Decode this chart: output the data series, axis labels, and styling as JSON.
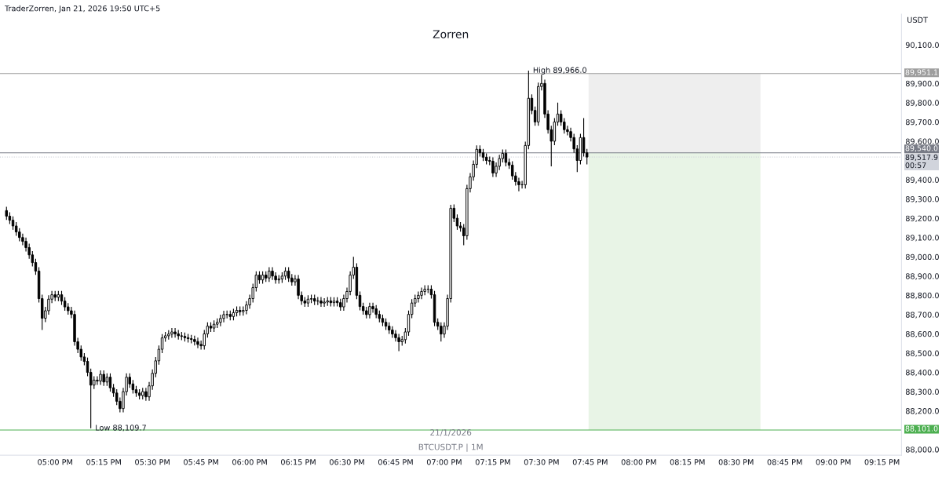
{
  "chart_data": {
    "type": "candlestick",
    "title": "Zorren",
    "ylabel": "USDT",
    "color": "#000000",
    "annotations": [
      "TraderZorren, Jan 21, 2026 19:50 UTC+5",
      "21/1/2026",
      "BTCUSDT.P | 1M",
      {
        "text": "High 89,966.0",
        "x": "2026-01-21T19:26",
        "y": 89966.0
      },
      {
        "text": "Low 88,109.7",
        "x": "2026-01-21T17:11",
        "y": 88109.7
      }
    ],
    "x": [
      "2026-01-21T16:45",
      "2026-01-21T16:46",
      "2026-01-21T16:47",
      "2026-01-21T16:48",
      "2026-01-21T16:49",
      "2026-01-21T16:50",
      "2026-01-21T16:51",
      "2026-01-21T16:52",
      "2026-01-21T16:53",
      "2026-01-21T16:54",
      "2026-01-21T16:55",
      "2026-01-21T16:56",
      "2026-01-21T16:57",
      "2026-01-21T16:58",
      "2026-01-21T16:59",
      "2026-01-21T17:00",
      "2026-01-21T17:01",
      "2026-01-21T17:02",
      "2026-01-21T17:03",
      "2026-01-21T17:04",
      "2026-01-21T17:05",
      "2026-01-21T17:06",
      "2026-01-21T17:07",
      "2026-01-21T17:08",
      "2026-01-21T17:09",
      "2026-01-21T17:10",
      "2026-01-21T17:11",
      "2026-01-21T17:12",
      "2026-01-21T17:13",
      "2026-01-21T17:14",
      "2026-01-21T17:15",
      "2026-01-21T17:16",
      "2026-01-21T17:17",
      "2026-01-21T17:18",
      "2026-01-21T17:19",
      "2026-01-21T17:20",
      "2026-01-21T17:21",
      "2026-01-21T17:22",
      "2026-01-21T17:23",
      "2026-01-21T17:24",
      "2026-01-21T17:25",
      "2026-01-21T17:26",
      "2026-01-21T17:27",
      "2026-01-21T17:28",
      "2026-01-21T17:29",
      "2026-01-21T17:30",
      "2026-01-21T17:31",
      "2026-01-21T17:32",
      "2026-01-21T17:33",
      "2026-01-21T17:34",
      "2026-01-21T17:35",
      "2026-01-21T17:36",
      "2026-01-21T17:37",
      "2026-01-21T17:38",
      "2026-01-21T17:39",
      "2026-01-21T17:40",
      "2026-01-21T17:41",
      "2026-01-21T17:42",
      "2026-01-21T17:43",
      "2026-01-21T17:44",
      "2026-01-21T17:45",
      "2026-01-21T17:46",
      "2026-01-21T17:47",
      "2026-01-21T17:48",
      "2026-01-21T17:49",
      "2026-01-21T17:50",
      "2026-01-21T17:51",
      "2026-01-21T17:52",
      "2026-01-21T17:53",
      "2026-01-21T17:54",
      "2026-01-21T17:55",
      "2026-01-21T17:56",
      "2026-01-21T17:57",
      "2026-01-21T17:58",
      "2026-01-21T17:59",
      "2026-01-21T18:00",
      "2026-01-21T18:01",
      "2026-01-21T18:02",
      "2026-01-21T18:03",
      "2026-01-21T18:04",
      "2026-01-21T18:05",
      "2026-01-21T18:06",
      "2026-01-21T18:07",
      "2026-01-21T18:08",
      "2026-01-21T18:09",
      "2026-01-21T18:10",
      "2026-01-21T18:11",
      "2026-01-21T18:12",
      "2026-01-21T18:13",
      "2026-01-21T18:14",
      "2026-01-21T18:15",
      "2026-01-21T18:16",
      "2026-01-21T18:17",
      "2026-01-21T18:18",
      "2026-01-21T18:19",
      "2026-01-21T18:20",
      "2026-01-21T18:21",
      "2026-01-21T18:22",
      "2026-01-21T18:23",
      "2026-01-21T18:24",
      "2026-01-21T18:25",
      "2026-01-21T18:26",
      "2026-01-21T18:27",
      "2026-01-21T18:28",
      "2026-01-21T18:29",
      "2026-01-21T18:30",
      "2026-01-21T18:31",
      "2026-01-21T18:32",
      "2026-01-21T18:33",
      "2026-01-21T18:34",
      "2026-01-21T18:35",
      "2026-01-21T18:36",
      "2026-01-21T18:37",
      "2026-01-21T18:38",
      "2026-01-21T18:39",
      "2026-01-21T18:40",
      "2026-01-21T18:41",
      "2026-01-21T18:42",
      "2026-01-21T18:43",
      "2026-01-21T18:44",
      "2026-01-21T18:45",
      "2026-01-21T18:46",
      "2026-01-21T18:47",
      "2026-01-21T18:48",
      "2026-01-21T18:49",
      "2026-01-21T18:50",
      "2026-01-21T18:51",
      "2026-01-21T18:52",
      "2026-01-21T18:53",
      "2026-01-21T18:54",
      "2026-01-21T18:55",
      "2026-01-21T18:56",
      "2026-01-21T18:57",
      "2026-01-21T18:58",
      "2026-01-21T18:59",
      "2026-01-21T19:00",
      "2026-01-21T19:01",
      "2026-01-21T19:02",
      "2026-01-21T19:03",
      "2026-01-21T19:04",
      "2026-01-21T19:05",
      "2026-01-21T19:06",
      "2026-01-21T19:07",
      "2026-01-21T19:08",
      "2026-01-21T19:09",
      "2026-01-21T19:10",
      "2026-01-21T19:11",
      "2026-01-21T19:12",
      "2026-01-21T19:13",
      "2026-01-21T19:14",
      "2026-01-21T19:15",
      "2026-01-21T19:16",
      "2026-01-21T19:17",
      "2026-01-21T19:18",
      "2026-01-21T19:19",
      "2026-01-21T19:20",
      "2026-01-21T19:21",
      "2026-01-21T19:22",
      "2026-01-21T19:23",
      "2026-01-21T19:24",
      "2026-01-21T19:25",
      "2026-01-21T19:26",
      "2026-01-21T19:27",
      "2026-01-21T19:28",
      "2026-01-21T19:29",
      "2026-01-21T19:30",
      "2026-01-21T19:31",
      "2026-01-21T19:32",
      "2026-01-21T19:33",
      "2026-01-21T19:34",
      "2026-01-21T19:35",
      "2026-01-21T19:36",
      "2026-01-21T19:37",
      "2026-01-21T19:38",
      "2026-01-21T19:39",
      "2026-01-21T19:40",
      "2026-01-21T19:41",
      "2026-01-21T19:42",
      "2026-01-21T19:43",
      "2026-01-21T19:44"
    ],
    "ohlc": [
      [
        89240,
        89260,
        89191,
        89211
      ],
      [
        89211,
        89231,
        89170,
        89190
      ],
      [
        89190,
        89210,
        89140,
        89160
      ],
      [
        89160,
        89180,
        89109,
        89129
      ],
      [
        89129,
        89149,
        89080,
        89100
      ],
      [
        89100,
        89120,
        89060,
        89080
      ],
      [
        89080,
        89100,
        89028,
        89048
      ],
      [
        89048,
        89068,
        88990,
        89010
      ],
      [
        89010,
        89030,
        88950,
        88970
      ],
      [
        88970,
        88990,
        88906,
        88926
      ],
      [
        88926,
        88946,
        88763,
        88783
      ],
      [
        88783,
        88803,
        88620,
        88681
      ],
      [
        88681,
        88740,
        88661,
        88720
      ],
      [
        88720,
        88800,
        88700,
        88780
      ],
      [
        88780,
        88823,
        88760,
        88803
      ],
      [
        88803,
        88823,
        88770,
        88790
      ],
      [
        88790,
        88823,
        88770,
        88803
      ],
      [
        88803,
        88823,
        88750,
        88770
      ],
      [
        88770,
        88790,
        88720,
        88740
      ],
      [
        88740,
        88760,
        88700,
        88720
      ],
      [
        88720,
        88740,
        88681,
        88701
      ],
      [
        88701,
        88721,
        88539,
        88559
      ],
      [
        88559,
        88579,
        88500,
        88520
      ],
      [
        88520,
        88540,
        88460,
        88480
      ],
      [
        88480,
        88500,
        88437,
        88457
      ],
      [
        88457,
        88477,
        88380,
        88400
      ],
      [
        88400,
        88420,
        88109.7,
        88334
      ],
      [
        88334,
        88380,
        88314,
        88360
      ],
      [
        88360,
        88380,
        88335,
        88355
      ],
      [
        88355,
        88410,
        88335,
        88390
      ],
      [
        88390,
        88410,
        88330,
        88350
      ],
      [
        88350,
        88395,
        88330,
        88375
      ],
      [
        88375,
        88395,
        88300,
        88320
      ],
      [
        88320,
        88340,
        88273,
        88293
      ],
      [
        88293,
        88313,
        88230,
        88250
      ],
      [
        88250,
        88270,
        88192,
        88212
      ],
      [
        88212,
        88320,
        88192,
        88300
      ],
      [
        88300,
        88395,
        88280,
        88375
      ],
      [
        88375,
        88395,
        88320,
        88340
      ],
      [
        88340,
        88360,
        88290,
        88310
      ],
      [
        88310,
        88330,
        88273,
        88293
      ],
      [
        88293,
        88313,
        88260,
        88280
      ],
      [
        88280,
        88320,
        88260,
        88300
      ],
      [
        88300,
        88320,
        88253,
        88273
      ],
      [
        88273,
        88350,
        88253,
        88330
      ],
      [
        88330,
        88415,
        88310,
        88395
      ],
      [
        88395,
        88480,
        88375,
        88460
      ],
      [
        88460,
        88540,
        88440,
        88520
      ],
      [
        88520,
        88599,
        88500,
        88579
      ],
      [
        88579,
        88610,
        88559,
        88590
      ],
      [
        88590,
        88619,
        88570,
        88599
      ],
      [
        88599,
        88630,
        88579,
        88610
      ],
      [
        88610,
        88630,
        88580,
        88600
      ],
      [
        88600,
        88620,
        88570,
        88590
      ],
      [
        88590,
        88610,
        88567,
        88587
      ],
      [
        88587,
        88607,
        88560,
        88580
      ],
      [
        88580,
        88600,
        88555,
        88575
      ],
      [
        88575,
        88595,
        88551,
        88571
      ],
      [
        88571,
        88591,
        88540,
        88560
      ],
      [
        88560,
        88580,
        88525,
        88545
      ],
      [
        88545,
        88565,
        88518,
        88538
      ],
      [
        88538,
        88620,
        88518,
        88600
      ],
      [
        88600,
        88660,
        88580,
        88640
      ],
      [
        88640,
        88660,
        88610,
        88630
      ],
      [
        88630,
        88670,
        88610,
        88650
      ],
      [
        88650,
        88680,
        88630,
        88660
      ],
      [
        88660,
        88700,
        88640,
        88680
      ],
      [
        88680,
        88720,
        88660,
        88700
      ],
      [
        88700,
        88721,
        88680,
        88701
      ],
      [
        88701,
        88721,
        88670,
        88690
      ],
      [
        88690,
        88730,
        88670,
        88710
      ],
      [
        88710,
        88742,
        88690,
        88722
      ],
      [
        88722,
        88742,
        88695,
        88715
      ],
      [
        88715,
        88742,
        88695,
        88722
      ],
      [
        88722,
        88770,
        88702,
        88750
      ],
      [
        88750,
        88803,
        88730,
        88783
      ],
      [
        88783,
        88860,
        88763,
        88840
      ],
      [
        88840,
        88925,
        88820,
        88905
      ],
      [
        88905,
        88925,
        88860,
        88880
      ],
      [
        88880,
        88925,
        88860,
        88905
      ],
      [
        88905,
        88925,
        88870,
        88890
      ],
      [
        88890,
        88946,
        88870,
        88926
      ],
      [
        88926,
        88946,
        88880,
        88900
      ],
      [
        88900,
        88920,
        88860,
        88880
      ],
      [
        88880,
        88905,
        88860,
        88885
      ],
      [
        88885,
        88920,
        88865,
        88900
      ],
      [
        88900,
        88946,
        88880,
        88926
      ],
      [
        88926,
        88946,
        88870,
        88890
      ],
      [
        88890,
        88910,
        88850,
        88870
      ],
      [
        88870,
        88905,
        88850,
        88885
      ],
      [
        88885,
        88905,
        88780,
        88800
      ],
      [
        88800,
        88820,
        88751,
        88771
      ],
      [
        88771,
        88791,
        88740,
        88760
      ],
      [
        88760,
        88800,
        88740,
        88780
      ],
      [
        88780,
        88803,
        88760,
        88783
      ],
      [
        88783,
        88803,
        88750,
        88770
      ],
      [
        88770,
        88791,
        88750,
        88771
      ],
      [
        88771,
        88791,
        88740,
        88760
      ],
      [
        88760,
        88785,
        88740,
        88765
      ],
      [
        88765,
        88791,
        88745,
        88771
      ],
      [
        88771,
        88791,
        88742,
        88762
      ],
      [
        88762,
        88790,
        88742,
        88770
      ],
      [
        88770,
        88790,
        88742,
        88762
      ],
      [
        88762,
        88782,
        88720,
        88740
      ],
      [
        88740,
        88803,
        88720,
        88783
      ],
      [
        88783,
        88840,
        88763,
        88820
      ],
      [
        88820,
        88925,
        88800,
        88905
      ],
      [
        88905,
        89000,
        88885,
        88946
      ],
      [
        88946,
        88966,
        88780,
        88800
      ],
      [
        88800,
        88820,
        88722,
        88742
      ],
      [
        88742,
        88762,
        88700,
        88720
      ],
      [
        88720,
        88740,
        88680,
        88700
      ],
      [
        88700,
        88762,
        88680,
        88742
      ],
      [
        88742,
        88762,
        88710,
        88730
      ],
      [
        88730,
        88750,
        88681,
        88701
      ],
      [
        88701,
        88721,
        88660,
        88680
      ],
      [
        88680,
        88700,
        88640,
        88660
      ],
      [
        88660,
        88680,
        88620,
        88640
      ],
      [
        88640,
        88660,
        88600,
        88620
      ],
      [
        88620,
        88640,
        88579,
        88599
      ],
      [
        88599,
        88619,
        88560,
        88580
      ],
      [
        88580,
        88600,
        88510,
        88559
      ],
      [
        88559,
        88590,
        88539,
        88570
      ],
      [
        88570,
        88630,
        88550,
        88610
      ],
      [
        88610,
        88721,
        88590,
        88701
      ],
      [
        88701,
        88780,
        88681,
        88760
      ],
      [
        88760,
        88803,
        88740,
        88783
      ],
      [
        88783,
        88820,
        88763,
        88800
      ],
      [
        88800,
        88840,
        88780,
        88820
      ],
      [
        88820,
        88852,
        88800,
        88832
      ],
      [
        88832,
        88852,
        88812,
        88832
      ],
      [
        88832,
        88852,
        88783,
        88803
      ],
      [
        88803,
        88823,
        88640,
        88660
      ],
      [
        88660,
        88680,
        88620,
        88640
      ],
      [
        88640,
        88660,
        88560,
        88599
      ],
      [
        88599,
        88660,
        88579,
        88640
      ],
      [
        88640,
        88803,
        88620,
        88783
      ],
      [
        88783,
        89270,
        88763,
        89252
      ],
      [
        89252,
        89272,
        89180,
        89200
      ],
      [
        89200,
        89220,
        89140,
        89160
      ],
      [
        89160,
        89180,
        89130,
        89150
      ],
      [
        89150,
        89170,
        89060,
        89109
      ],
      [
        89109,
        89374,
        89089,
        89354
      ],
      [
        89354,
        89435,
        89334,
        89415
      ],
      [
        89415,
        89500,
        89395,
        89480
      ],
      [
        89480,
        89578,
        89460,
        89558
      ],
      [
        89558,
        89578,
        89520,
        89540
      ],
      [
        89540,
        89560,
        89497,
        89517
      ],
      [
        89517,
        89537,
        89480,
        89500
      ],
      [
        89500,
        89520,
        89476,
        89496
      ],
      [
        89496,
        89516,
        89415,
        89435
      ],
      [
        89435,
        89490,
        89415,
        89470
      ],
      [
        89470,
        89530,
        89450,
        89510
      ],
      [
        89510,
        89557,
        89490,
        89537
      ],
      [
        89537,
        89557,
        89470,
        89490
      ],
      [
        89490,
        89510,
        89456,
        89476
      ],
      [
        89476,
        89496,
        89400,
        89420
      ],
      [
        89420,
        89440,
        89370,
        89390
      ],
      [
        89390,
        89410,
        89340,
        89374
      ],
      [
        89374,
        89394,
        89354,
        89374
      ],
      [
        89374,
        89598,
        89354,
        89578
      ],
      [
        89578,
        89966,
        89558,
        89823
      ],
      [
        89823,
        89843,
        89740,
        89760
      ],
      [
        89760,
        89780,
        89680,
        89700
      ],
      [
        89700,
        89904,
        89680,
        89884
      ],
      [
        89884,
        89945,
        89864,
        89900
      ],
      [
        89900,
        89920,
        89721,
        89741
      ],
      [
        89741,
        89761,
        89640,
        89660
      ],
      [
        89660,
        89680,
        89470,
        89600
      ],
      [
        89600,
        89720,
        89580,
        89700
      ],
      [
        89700,
        89800,
        89680,
        89741
      ],
      [
        89741,
        89761,
        89680,
        89700
      ],
      [
        89700,
        89720,
        89640,
        89660
      ],
      [
        89660,
        89680,
        89630,
        89650
      ],
      [
        89650,
        89670,
        89599,
        89619
      ],
      [
        89619,
        89639,
        89540,
        89560
      ],
      [
        89560,
        89580,
        89440,
        89500
      ],
      [
        89500,
        89639,
        89480,
        89619
      ],
      [
        89619,
        89720,
        89520,
        89540
      ],
      [
        89540,
        89560,
        89480,
        89517.9
      ]
    ],
    "xlim": [
      "2026-01-21T16:43",
      "2026-01-21T21:21"
    ],
    "xticks": [
      {
        "value": "2026-01-21T17:00",
        "label": "05:00 PM"
      },
      {
        "value": "2026-01-21T17:15",
        "label": "05:15 PM"
      },
      {
        "value": "2026-01-21T17:30",
        "label": "05:30 PM"
      },
      {
        "value": "2026-01-21T17:45",
        "label": "05:45 PM"
      },
      {
        "value": "2026-01-21T18:00",
        "label": "06:00 PM"
      },
      {
        "value": "2026-01-21T18:15",
        "label": "06:15 PM"
      },
      {
        "value": "2026-01-21T18:30",
        "label": "06:30 PM"
      },
      {
        "value": "2026-01-21T18:45",
        "label": "06:45 PM"
      },
      {
        "value": "2026-01-21T19:00",
        "label": "07:00 PM"
      },
      {
        "value": "2026-01-21T19:15",
        "label": "07:15 PM"
      },
      {
        "value": "2026-01-21T19:30",
        "label": "07:30 PM"
      },
      {
        "value": "2026-01-21T19:45",
        "label": "07:45 PM"
      },
      {
        "value": "2026-01-21T20:00",
        "label": "08:00 PM"
      },
      {
        "value": "2026-01-21T20:15",
        "label": "08:15 PM"
      },
      {
        "value": "2026-01-21T20:30",
        "label": "08:30 PM"
      },
      {
        "value": "2026-01-21T20:45",
        "label": "08:45 PM"
      },
      {
        "value": "2026-01-21T21:00",
        "label": "09:00 PM"
      },
      {
        "value": "2026-01-21T21:15",
        "label": "09:15 PM"
      }
    ],
    "ylim": [
      87970,
      90260
    ],
    "yticks": [
      {
        "value": 88000,
        "label": "88,000.0"
      },
      {
        "value": 88200,
        "label": "88,200.0"
      },
      {
        "value": 88300,
        "label": "88,300.0"
      },
      {
        "value": 88400,
        "label": "88,400.0"
      },
      {
        "value": 88500,
        "label": "88,500.0"
      },
      {
        "value": 88600,
        "label": "88,600.0"
      },
      {
        "value": 88700,
        "label": "88,700.0"
      },
      {
        "value": 88800,
        "label": "88,800.0"
      },
      {
        "value": 88900,
        "label": "88,900.0"
      },
      {
        "value": 89000,
        "label": "89,000.0"
      },
      {
        "value": 89100,
        "label": "89,100.0"
      },
      {
        "value": 89200,
        "label": "89,200.0"
      },
      {
        "value": 89300,
        "label": "89,300.0"
      },
      {
        "value": 89400,
        "label": "89,400.0"
      },
      {
        "value": 89600,
        "label": "89,600.0"
      },
      {
        "value": 89700,
        "label": "89,700.0"
      },
      {
        "value": 89800,
        "label": "89,800.0"
      },
      {
        "value": 89900,
        "label": "89,900.0"
      },
      {
        "value": 90100,
        "label": "90,100.0"
      }
    ],
    "bands": [
      {
        "axis": "y",
        "from": 89540,
        "to": 89951.1,
        "color": "#eeeeee"
      },
      {
        "axis": "y",
        "from": 88101,
        "to": 89540,
        "color": "#e8f4e6"
      }
    ],
    "ref_lines": [
      {
        "axis": "y",
        "value": 89951.1,
        "label": "89,951.1",
        "color": "#9e9e9e",
        "line_style": "solid"
      },
      {
        "axis": "y",
        "value": 89540,
        "label": "89,540.0",
        "color": "#787b86",
        "line_style": "solid"
      },
      {
        "axis": "y",
        "value": 89517.9,
        "label": "89,517.9\n00:57",
        "color": "#d1d4dc",
        "line_style": "dotted"
      },
      {
        "axis": "y",
        "value": 88101,
        "label": "88,101.0",
        "color": "#4caf50",
        "line_style": "solid"
      }
    ],
    "grid": false
  }
}
